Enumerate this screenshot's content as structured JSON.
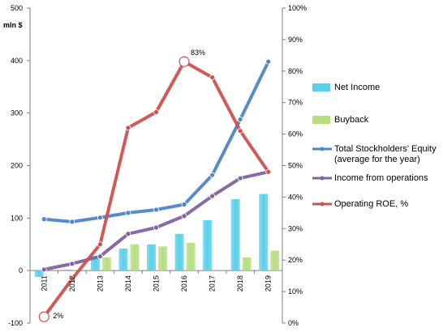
{
  "chart_data": {
    "type": "bar+line",
    "unit_label": "mln $",
    "categories": [
      "2011",
      "2012",
      "2013",
      "2014",
      "2015",
      "2016",
      "2017",
      "2018",
      "2019"
    ],
    "left_axis": {
      "min": -100,
      "max": 500,
      "ticks": [
        "-100",
        "0",
        "100",
        "200",
        "300",
        "400",
        "500"
      ]
    },
    "right_axis": {
      "min": 0,
      "max": 100,
      "ticks": [
        "0%",
        "10%",
        "20%",
        "30%",
        "40%",
        "50%",
        "60%",
        "70%",
        "80%",
        "90%",
        "100%"
      ]
    },
    "series": [
      {
        "name": "Net Income",
        "kind": "bar",
        "axis": "left",
        "color": "#5ad0ea",
        "values": [
          -12,
          2,
          28,
          42,
          50,
          70,
          96,
          136,
          146
        ]
      },
      {
        "name": "Buyback",
        "kind": "bar",
        "axis": "left",
        "color": "#b6dd7e",
        "values": [
          0,
          0,
          25,
          50,
          46,
          53,
          0,
          25,
          38
        ]
      },
      {
        "name": "Total Stockholders' Equity\n(average for the year)",
        "kind": "line",
        "axis": "left",
        "color": "#4f86c6",
        "values": [
          98,
          93,
          101,
          110,
          116,
          126,
          182,
          288,
          398
        ]
      },
      {
        "name": "Income from operations",
        "kind": "line",
        "axis": "left",
        "color": "#8064a2",
        "values": [
          2,
          13,
          27,
          70,
          82,
          104,
          142,
          176,
          188
        ]
      },
      {
        "name": "Operating ROE, %",
        "kind": "line",
        "axis": "right",
        "color": "#d0504d",
        "values": [
          2,
          14,
          25,
          62,
          67,
          83,
          78,
          61,
          48
        ]
      }
    ],
    "annotations": [
      {
        "series": "Operating ROE, %",
        "category": "2011",
        "label": "2%"
      },
      {
        "series": "Operating ROE, %",
        "category": "2016",
        "label": "83%"
      }
    ]
  }
}
